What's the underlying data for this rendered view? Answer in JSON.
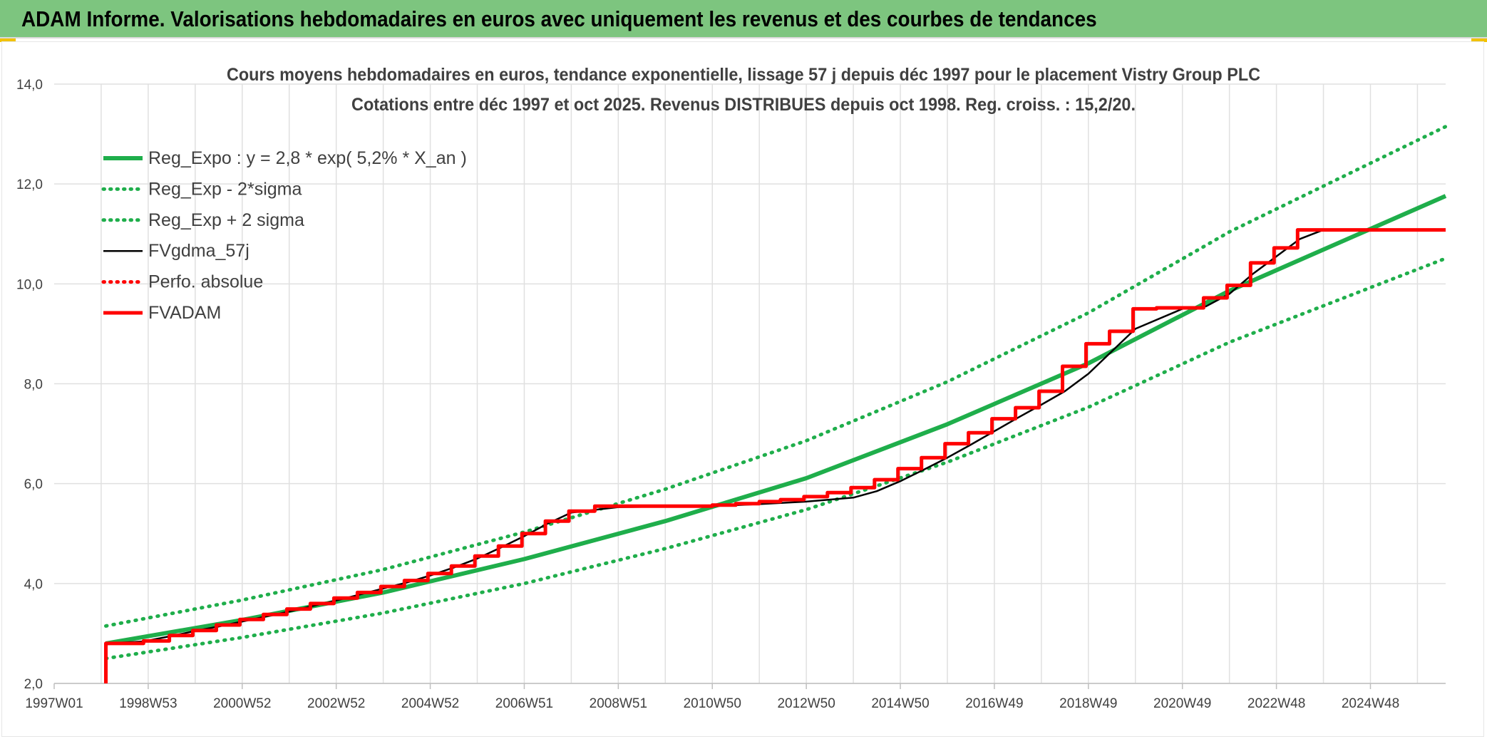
{
  "header": {
    "title": "ADAM Informe. Valorisations hebdomadaires en euros avec uniquement les revenus et des courbes de tendances"
  },
  "colors": {
    "header_bg": "#7dc57f",
    "reg_green": "#1fae4b",
    "fv_black": "#000000",
    "adam_red": "#ff0000",
    "grid": "#e0e0e0"
  },
  "chart_data": {
    "type": "line",
    "title": "Cours moyens hebdomadaires en euros, tendance exponentielle, lissage 57 j depuis déc 1997 pour le placement Vistry Group PLC",
    "subtitle": "Cotations entre déc 1997 et oct 2025. Revenus DISTRIBUES depuis oct 1998. Reg. croiss. : 15,2/20.",
    "xlabel": "",
    "ylabel": "",
    "ylim": [
      2,
      14
    ],
    "xlim": [
      1997.0,
      2026.6
    ],
    "y_ticks": [
      "2,0",
      "4,0",
      "6,0",
      "8,0",
      "10,0",
      "12,0",
      "14,0"
    ],
    "x_ticks": [
      {
        "label": "1997W01",
        "x": 1997.0
      },
      {
        "label": "1998W53",
        "x": 1999.0
      },
      {
        "label": "2000W52",
        "x": 2001.0
      },
      {
        "label": "2002W52",
        "x": 2003.0
      },
      {
        "label": "2004W52",
        "x": 2005.0
      },
      {
        "label": "2006W51",
        "x": 2007.0
      },
      {
        "label": "2008W51",
        "x": 2009.0
      },
      {
        "label": "2010W50",
        "x": 2011.0
      },
      {
        "label": "2012W50",
        "x": 2013.0
      },
      {
        "label": "2014W50",
        "x": 2015.0
      },
      {
        "label": "2016W49",
        "x": 2017.0
      },
      {
        "label": "2018W49",
        "x": 2019.0
      },
      {
        "label": "2020W49",
        "x": 2021.0
      },
      {
        "label": "2022W48",
        "x": 2023.0
      },
      {
        "label": "2024W48",
        "x": 2025.0
      }
    ],
    "grid": true,
    "legend_position": "top-left",
    "series": [
      {
        "name": "Reg_Expo : y = 2,8 * exp( 5,2% *  X_an )",
        "style": "solid-thick",
        "color": "#1fae4b",
        "x": [
          1998.1,
          2001,
          2004,
          2007,
          2010,
          2013,
          2016,
          2019,
          2022,
          2026.6
        ],
        "y": [
          2.8,
          3.27,
          3.82,
          4.49,
          5.25,
          6.11,
          7.19,
          8.41,
          9.86,
          11.76
        ]
      },
      {
        "name": "Reg_Exp - 2*sigma",
        "style": "dotted",
        "color": "#1fae4b",
        "x": [
          1998.1,
          2001,
          2004,
          2007,
          2010,
          2013,
          2016,
          2019,
          2022,
          2026.6
        ],
        "y": [
          2.5,
          2.92,
          3.41,
          4.0,
          4.7,
          5.48,
          6.43,
          7.53,
          8.83,
          10.51
        ]
      },
      {
        "name": "Reg_Exp + 2 sigma",
        "style": "dotted",
        "color": "#1fae4b",
        "x": [
          1998.1,
          2001,
          2004,
          2007,
          2010,
          2013,
          2016,
          2019,
          2022,
          2026.6
        ],
        "y": [
          3.15,
          3.67,
          4.28,
          5.03,
          5.89,
          6.86,
          8.04,
          9.42,
          11.04,
          13.15
        ]
      },
      {
        "name": "FVgdma_57j",
        "style": "solid",
        "color": "#000000",
        "x": [
          1998.1,
          1998.9,
          1999.5,
          2000.0,
          2000.5,
          2001.0,
          2001.5,
          2002.0,
          2002.5,
          2003.0,
          2003.5,
          2004.0,
          2004.5,
          2005.0,
          2005.5,
          2006.0,
          2006.5,
          2007.0,
          2007.5,
          2008.0,
          2009.0,
          2011.0,
          2012.0,
          2013.0,
          2014.0,
          2014.5,
          2015.0,
          2015.5,
          2016.0,
          2016.5,
          2017.0,
          2017.5,
          2018.0,
          2018.5,
          2019.0,
          2019.5,
          2020.0,
          2021.0,
          2021.5,
          2022.0,
          2022.5,
          2023.0,
          2023.5,
          2024.0,
          2026.6
        ],
        "y": [
          2.8,
          2.84,
          2.95,
          3.05,
          3.14,
          3.24,
          3.34,
          3.44,
          3.55,
          3.66,
          3.78,
          3.9,
          4.02,
          4.16,
          4.32,
          4.5,
          4.72,
          4.95,
          5.2,
          5.42,
          5.53,
          5.55,
          5.59,
          5.64,
          5.72,
          5.85,
          6.05,
          6.28,
          6.52,
          6.78,
          7.05,
          7.32,
          7.58,
          7.85,
          8.2,
          8.65,
          9.1,
          9.5,
          9.55,
          9.8,
          10.2,
          10.55,
          10.9,
          11.08,
          11.08
        ]
      },
      {
        "name": "Perfo. absolue",
        "style": "dotted",
        "color": "#ff0000",
        "x": [],
        "y": []
      },
      {
        "name": "FVADAM",
        "style": "step-thick",
        "color": "#ff0000",
        "x": [
          1998.1,
          1998.1,
          1998.9,
          1999.45,
          1999.95,
          2000.45,
          2000.95,
          2001.45,
          2001.95,
          2002.45,
          2002.95,
          2003.45,
          2003.95,
          2004.45,
          2004.95,
          2005.45,
          2005.95,
          2006.45,
          2006.95,
          2007.45,
          2007.95,
          2008.5,
          2011.0,
          2011.5,
          2012.0,
          2012.45,
          2012.95,
          2013.45,
          2013.95,
          2014.45,
          2014.95,
          2015.45,
          2015.95,
          2016.45,
          2016.95,
          2017.45,
          2017.95,
          2018.45,
          2018.95,
          2019.45,
          2019.95,
          2020.45,
          2021.45,
          2021.95,
          2022.45,
          2022.95,
          2023.45,
          2026.6
        ],
        "y": [
          2.0,
          2.8,
          2.85,
          2.96,
          3.06,
          3.17,
          3.28,
          3.38,
          3.49,
          3.6,
          3.71,
          3.82,
          3.94,
          4.06,
          4.2,
          4.35,
          4.55,
          4.75,
          5.0,
          5.25,
          5.45,
          5.55,
          5.57,
          5.6,
          5.64,
          5.68,
          5.74,
          5.82,
          5.92,
          6.08,
          6.3,
          6.52,
          6.8,
          7.02,
          7.3,
          7.52,
          7.85,
          8.35,
          8.8,
          9.05,
          9.5,
          9.52,
          9.72,
          9.97,
          10.42,
          10.72,
          11.08,
          11.08
        ]
      }
    ]
  }
}
